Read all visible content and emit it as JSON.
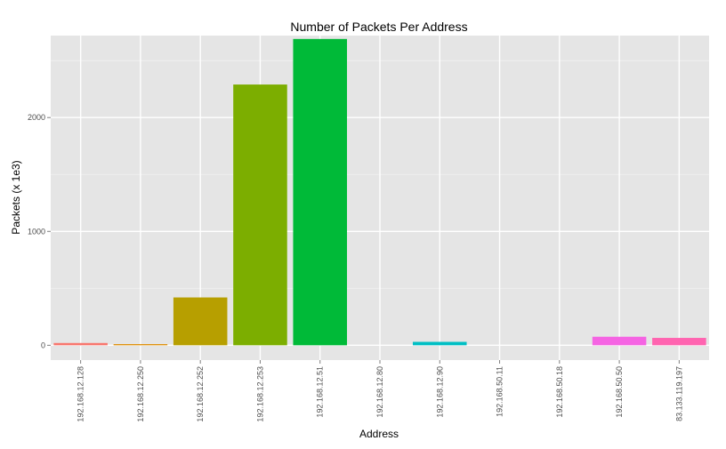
{
  "chart_data": {
    "type": "bar",
    "title": "Number of Packets Per Address",
    "xlabel": "Address",
    "ylabel": "Packets (x 1e3)",
    "ylim": [
      -130,
      2720
    ],
    "yticks": [
      0,
      1000,
      2000
    ],
    "grid": true,
    "categories": [
      "192.168.12.128",
      "192.168.12.250",
      "192.168.12.252",
      "192.168.12.253",
      "192.168.12.51",
      "192.168.12.80",
      "192.168.12.90",
      "192.168.50.11",
      "192.168.50.18",
      "192.168.50.50",
      "83.133.119.197"
    ],
    "values": [
      20,
      10,
      420,
      2290,
      2690,
      0,
      30,
      0,
      0,
      75,
      65
    ],
    "colors": [
      "#F8766D",
      "#DE8C00",
      "#B79F00",
      "#7CAE00",
      "#00BA38",
      "#00C08B",
      "#00BFC4",
      "#00B4F0",
      "#619CFF",
      "#F564E3",
      "#FF64B0"
    ]
  }
}
